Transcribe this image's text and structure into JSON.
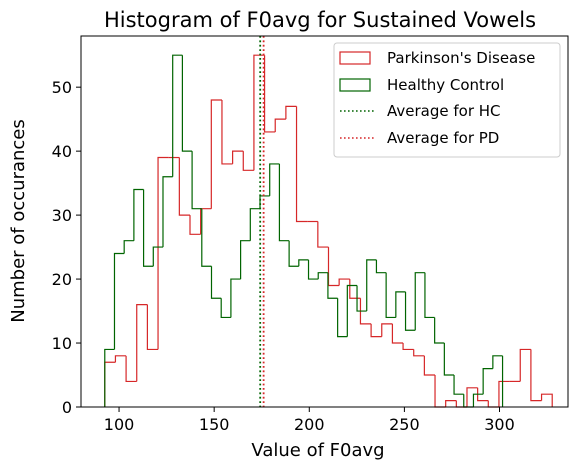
{
  "chart_data": {
    "type": "histogram",
    "title": "Histogram of F0avg for Sustained Vowels",
    "xlabel": "Value of F0avg",
    "ylabel": "Number of occurances",
    "xlim": [
      80,
      336
    ],
    "ylim": [
      0,
      58
    ],
    "xticks": [
      100,
      150,
      200,
      250,
      300
    ],
    "yticks": [
      0,
      10,
      20,
      30,
      40,
      50
    ],
    "grid": false,
    "legend_position": "top-right",
    "series": [
      {
        "name": "Parkinson's Disease",
        "color": "#d62728",
        "style": "step",
        "bin_edges": [
          92.5,
          98.1,
          103.7,
          109.3,
          114.9,
          120.5,
          126.1,
          131.7,
          137.3,
          142.9,
          148.5,
          154.1,
          159.7,
          165.3,
          170.9,
          176.5,
          182.1,
          187.7,
          193.3,
          198.9,
          204.5,
          210.1,
          215.7,
          221.3,
          226.9,
          232.5,
          238.1,
          243.7,
          249.3,
          254.9,
          260.5,
          266.1,
          271.7,
          277.3,
          282.9,
          288.5,
          294.1,
          299.7,
          305.3,
          310.9,
          316.5,
          322.1,
          327.7
        ],
        "counts": [
          7,
          8,
          4,
          16,
          9,
          39,
          39,
          30,
          27,
          31,
          48,
          38,
          40,
          37,
          55,
          43,
          45,
          47,
          29,
          29,
          25,
          19,
          20,
          17,
          13,
          11,
          13,
          10,
          9,
          8,
          5,
          0,
          1,
          0,
          3,
          1,
          0,
          4,
          4,
          9,
          1,
          2
        ]
      },
      {
        "name": "Healthy Control",
        "color": "#006400",
        "style": "step",
        "bin_edges": [
          92.5,
          97.6,
          102.7,
          107.8,
          112.9,
          118.0,
          123.1,
          128.2,
          133.3,
          138.4,
          143.5,
          148.6,
          153.7,
          158.8,
          163.9,
          169.0,
          174.1,
          179.2,
          184.3,
          189.4,
          194.5,
          199.6,
          204.7,
          209.8,
          214.9,
          220.0,
          225.1,
          230.2,
          235.3,
          240.4,
          245.5,
          250.6,
          255.7,
          260.8,
          265.9,
          271.0,
          276.1,
          281.2,
          286.3,
          291.4,
          296.5,
          301.6
        ],
        "counts": [
          9,
          24,
          26,
          34,
          22,
          25,
          36,
          55,
          40,
          31,
          22,
          17,
          14,
          20,
          26,
          31,
          33,
          38,
          26,
          22,
          23,
          20,
          21,
          17,
          11,
          19,
          15,
          23,
          21,
          14,
          18,
          12,
          21,
          14,
          10,
          5,
          2,
          0,
          2,
          6,
          8,
          0
        ]
      }
    ],
    "reference_lines": [
      {
        "name": "Average for HC",
        "x": 174.2,
        "color": "#006400",
        "style": "dotted"
      },
      {
        "name": "Average for PD",
        "x": 176.0,
        "color": "#d62728",
        "style": "dotted"
      }
    ]
  }
}
